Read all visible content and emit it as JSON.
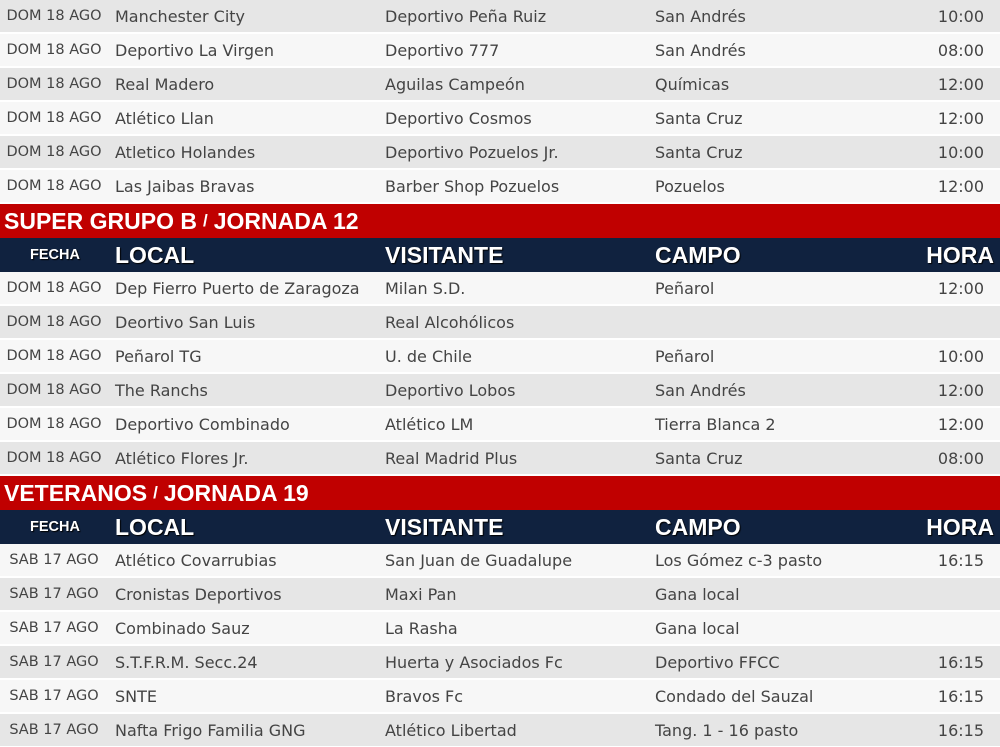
{
  "colors": {
    "section_title": "#c00000",
    "column_header": "#10223f",
    "row_light": "#f7f7f7",
    "row_gray": "#e6e6e6"
  },
  "columns": {
    "fecha": "FECHA",
    "local": "LOCAL",
    "visitante": "VISITANTE",
    "campo": "CAMPO",
    "hora": "HORA"
  },
  "sections": [
    {
      "title": "",
      "jornada": "",
      "rows": [
        {
          "fecha": "DOM 18 AGO",
          "local": "Manchester City",
          "visitante": "Deportivo Peña Ruiz",
          "campo": "San Andrés",
          "hora": "10:00"
        },
        {
          "fecha": "DOM 18 AGO",
          "local": "Deportivo La Virgen",
          "visitante": "Deportivo 777",
          "campo": "San Andrés",
          "hora": "08:00"
        },
        {
          "fecha": "DOM 18 AGO",
          "local": "Real Madero",
          "visitante": "Aguilas Campeón",
          "campo": "Químicas",
          "hora": "12:00"
        },
        {
          "fecha": "DOM 18 AGO",
          "local": "Atlético Llan",
          "visitante": "Deportivo Cosmos",
          "campo": "Santa Cruz",
          "hora": "12:00"
        },
        {
          "fecha": "DOM 18 AGO",
          "local": "Atletico Holandes",
          "visitante": "Deportivo Pozuelos Jr.",
          "campo": "Santa Cruz",
          "hora": "10:00"
        },
        {
          "fecha": "DOM 18 AGO",
          "local": "Las Jaibas Bravas",
          "visitante": "Barber Shop Pozuelos",
          "campo": "Pozuelos",
          "hora": "12:00"
        }
      ]
    },
    {
      "title": "SUPER GRUPO B",
      "separator": "/",
      "jornada": "JORNADA 12",
      "rows": [
        {
          "fecha": "DOM 18 AGO",
          "local": "Dep Fierro Puerto de Zaragoza",
          "visitante": "Milan S.D.",
          "campo": "Peñarol",
          "hora": "12:00"
        },
        {
          "fecha": "DOM 18 AGO",
          "local": "Deortivo San Luis",
          "visitante": "Real Alcohólicos",
          "campo": "",
          "hora": ""
        },
        {
          "fecha": "DOM 18 AGO",
          "local": "Peñarol TG",
          "visitante": "U. de Chile",
          "campo": "Peñarol",
          "hora": "10:00"
        },
        {
          "fecha": "DOM 18 AGO",
          "local": "The Ranchs",
          "visitante": "Deportivo Lobos",
          "campo": "San Andrés",
          "hora": "12:00"
        },
        {
          "fecha": "DOM 18 AGO",
          "local": "Deportivo Combinado",
          "visitante": "Atlético LM",
          "campo": "Tierra Blanca 2",
          "hora": "12:00"
        },
        {
          "fecha": "DOM 18 AGO",
          "local": "Atlético Flores Jr.",
          "visitante": "Real Madrid Plus",
          "campo": "Santa Cruz",
          "hora": "08:00"
        }
      ]
    },
    {
      "title": "VETERANOS",
      "separator": "/",
      "jornada": "JORNADA 19",
      "rows": [
        {
          "fecha": "SAB 17 AGO",
          "local": "Atlético Covarrubias",
          "visitante": "San Juan de Guadalupe",
          "campo": "Los Gómez c-3 pasto",
          "hora": "16:15"
        },
        {
          "fecha": "SAB 17 AGO",
          "local": "Cronistas Deportivos",
          "visitante": "Maxi Pan",
          "campo": "Gana local",
          "hora": ""
        },
        {
          "fecha": "SAB 17 AGO",
          "local": "Combinado Sauz",
          "visitante": "La Rasha",
          "campo": "Gana local",
          "hora": ""
        },
        {
          "fecha": "SAB 17 AGO",
          "local": "S.T.F.R.M. Secc.24",
          "visitante": "Huerta y Asociados Fc",
          "campo": "Deportivo FFCC",
          "hora": "16:15"
        },
        {
          "fecha": "SAB 17 AGO",
          "local": "SNTE",
          "visitante": "Bravos Fc",
          "campo": "Condado del Sauzal",
          "hora": "16:15"
        },
        {
          "fecha": "SAB 17 AGO",
          "local": "Nafta Frigo Familia GNG",
          "visitante": "Atlético Libertad",
          "campo": "Tang. 1 - 16 pasto",
          "hora": "16:15"
        }
      ]
    }
  ]
}
